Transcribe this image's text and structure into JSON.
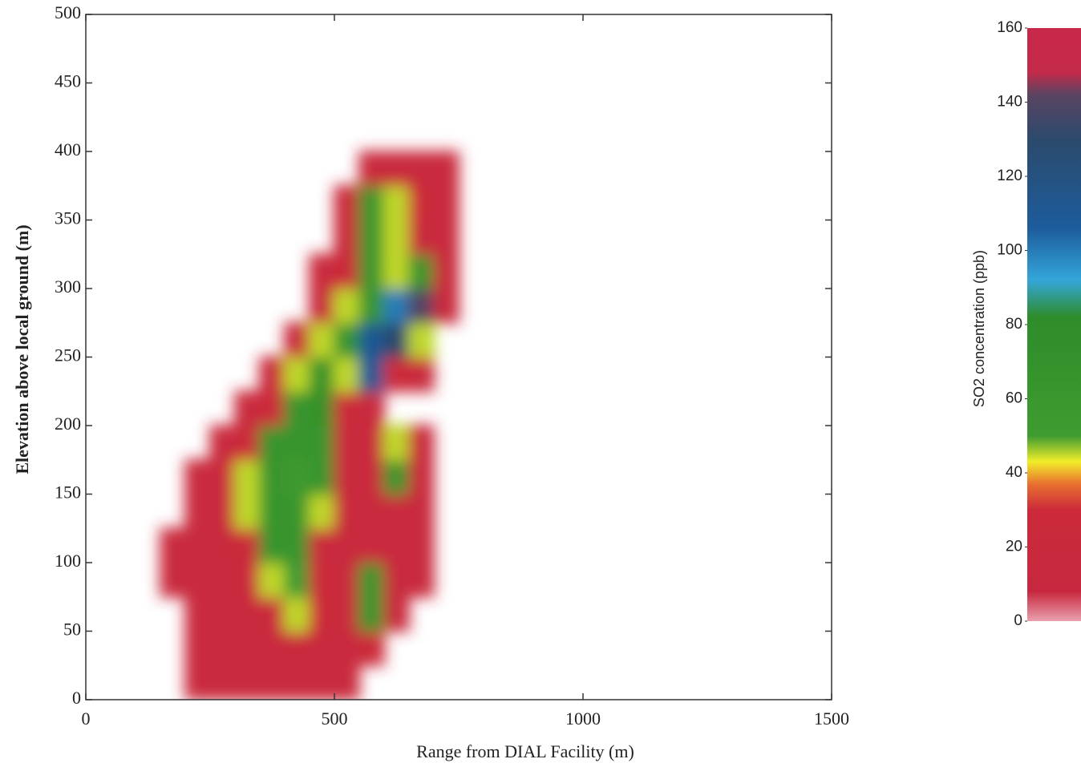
{
  "chart_data": {
    "type": "heatmap",
    "x_label": "Range from DIAL Facility (m)",
    "y_label": "Elevation above local ground (m)",
    "colorbar_label": "SO2 concentration (ppb)",
    "xlim": [
      0,
      1500
    ],
    "xticks": [
      0,
      500,
      1000,
      1500
    ],
    "ylim": [
      0,
      500
    ],
    "yticks": [
      0,
      50,
      100,
      150,
      200,
      250,
      300,
      350,
      400,
      450,
      500
    ],
    "clim": [
      0,
      160
    ],
    "cticks": [
      0,
      20,
      40,
      60,
      80,
      100,
      120,
      140,
      160
    ],
    "colorscale": [
      [
        0,
        "#eaa0ae"
      ],
      [
        8,
        "#c8283f"
      ],
      [
        30,
        "#cc2a3a"
      ],
      [
        37,
        "#e8702f"
      ],
      [
        43,
        "#f2ee2a"
      ],
      [
        50,
        "#3e9c30"
      ],
      [
        82,
        "#2e8c2a"
      ],
      [
        92,
        "#34a6da"
      ],
      [
        106,
        "#1c5c9c"
      ],
      [
        130,
        "#2c4a6c"
      ],
      [
        142,
        "#5a4462"
      ],
      [
        148,
        "#c42a4a"
      ],
      [
        160,
        "#c8284a"
      ]
    ],
    "x": [
      175,
      225,
      275,
      325,
      375,
      425,
      475,
      525,
      575,
      625,
      675,
      725
    ],
    "y": [
      12.5,
      37.5,
      62.5,
      87.5,
      112.5,
      137.5,
      162.5,
      187.5,
      212.5,
      237.5,
      262.5,
      287.5,
      312.5,
      337.5,
      362.5,
      387.5
    ],
    "values": [
      [
        null,
        15,
        15,
        15,
        15,
        15,
        15,
        15,
        null,
        null,
        null,
        null
      ],
      [
        null,
        15,
        15,
        15,
        15,
        20,
        15,
        15,
        30,
        null,
        null,
        null
      ],
      [
        null,
        15,
        15,
        20,
        20,
        45,
        30,
        15,
        65,
        15,
        null,
        null
      ],
      [
        15,
        15,
        15,
        20,
        45,
        50,
        30,
        15,
        65,
        15,
        15,
        null
      ],
      [
        15,
        15,
        20,
        30,
        65,
        65,
        20,
        15,
        20,
        15,
        20,
        null
      ],
      [
        null,
        15,
        20,
        45,
        65,
        65,
        45,
        15,
        20,
        20,
        15,
        null
      ],
      [
        null,
        15,
        20,
        45,
        65,
        55,
        65,
        20,
        20,
        65,
        15,
        null
      ],
      [
        null,
        null,
        15,
        30,
        65,
        65,
        65,
        20,
        15,
        45,
        15,
        null
      ],
      [
        null,
        null,
        null,
        15,
        30,
        65,
        70,
        30,
        15,
        null,
        null,
        null
      ],
      [
        null,
        null,
        null,
        null,
        15,
        45,
        70,
        45,
        110,
        30,
        15,
        null
      ],
      [
        null,
        null,
        null,
        null,
        null,
        15,
        45,
        65,
        110,
        130,
        45,
        null
      ],
      [
        null,
        null,
        null,
        null,
        null,
        null,
        15,
        45,
        65,
        100,
        140,
        15
      ],
      [
        null,
        null,
        null,
        null,
        null,
        null,
        15,
        30,
        65,
        45,
        65,
        15
      ],
      [
        null,
        null,
        null,
        null,
        null,
        null,
        null,
        15,
        65,
        45,
        15,
        15
      ],
      [
        null,
        null,
        null,
        null,
        null,
        null,
        null,
        15,
        65,
        45,
        30,
        15
      ],
      [
        null,
        null,
        null,
        null,
        null,
        null,
        null,
        null,
        15,
        15,
        15,
        15
      ]
    ]
  }
}
